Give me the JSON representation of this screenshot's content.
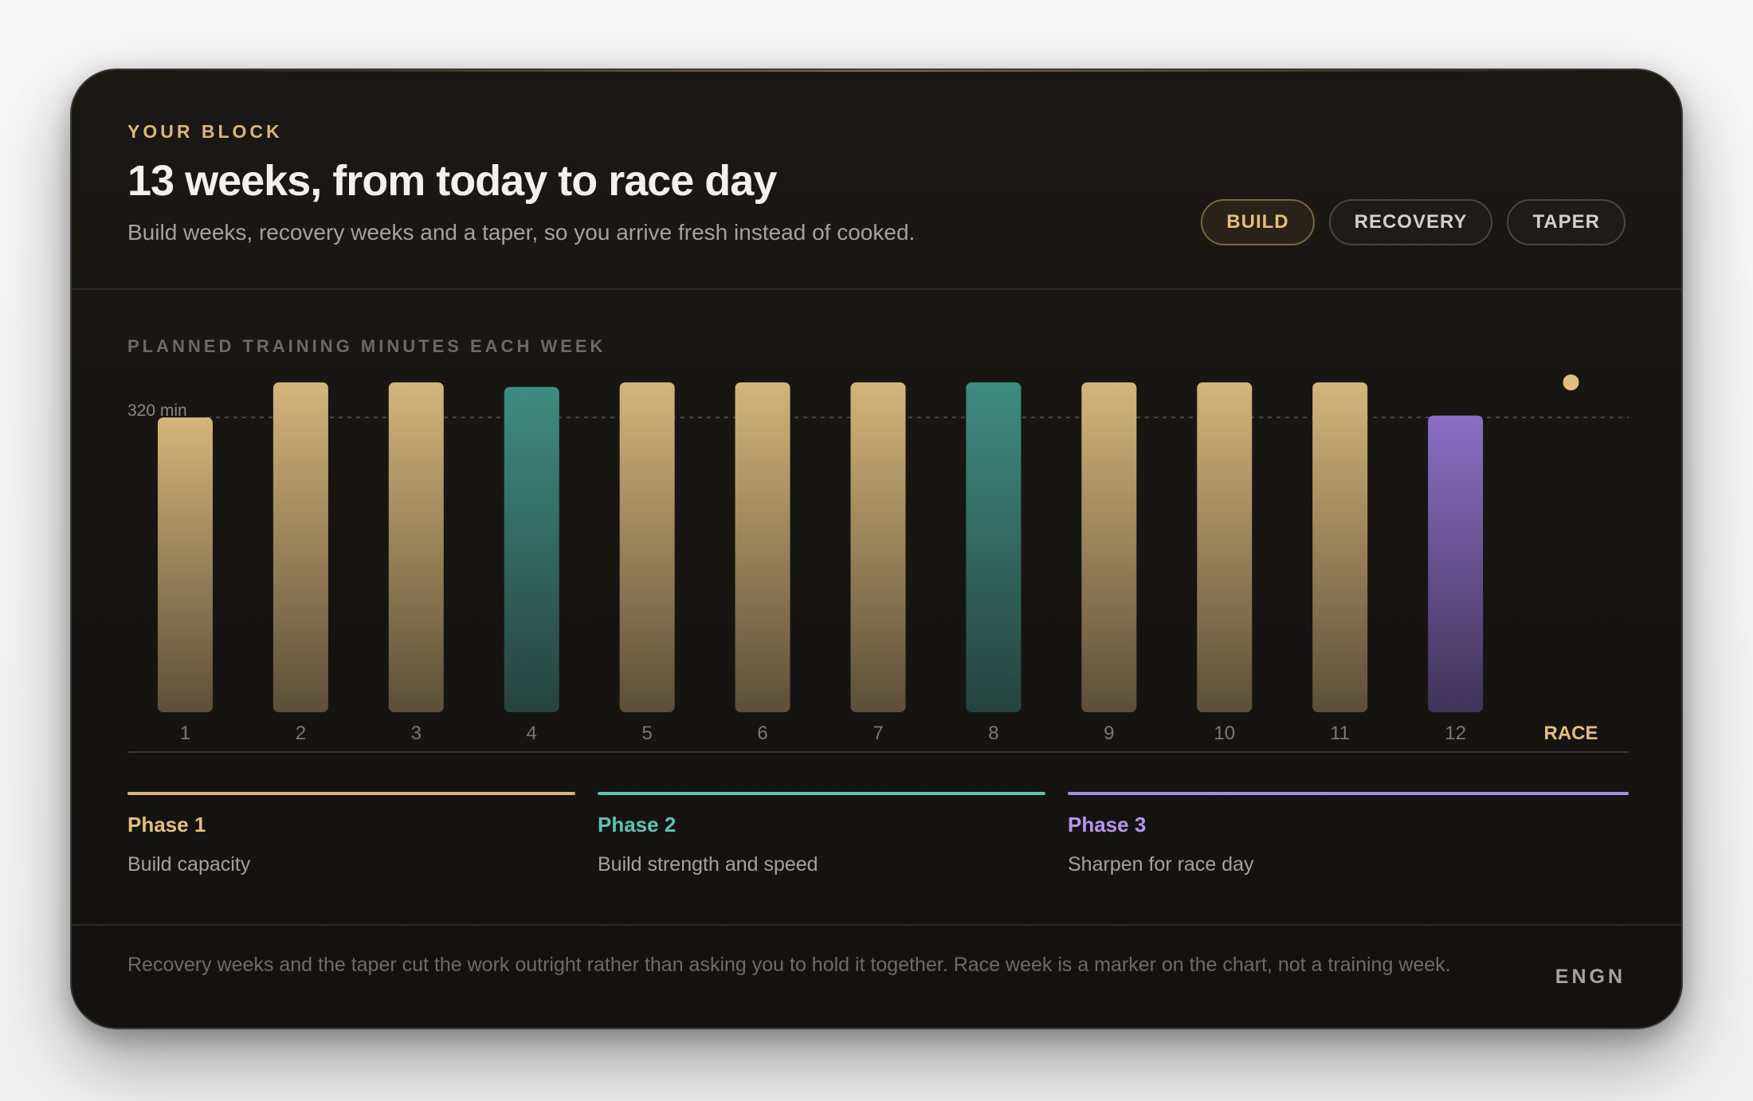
{
  "header": {
    "eyebrow": "YOUR BLOCK",
    "title": "13 weeks, from today to race day",
    "subtitle": "Build weeks, recovery weeks and a taper, so you arrive fresh instead of cooked."
  },
  "legend_pills": [
    "BUILD",
    "RECOVERY",
    "TAPER"
  ],
  "chart_label": "PLANNED TRAINING MINUTES EACH WEEK",
  "colors": {
    "build": "#d8b77a",
    "recovery": "#4a9a8c",
    "taper": "#8a70c8",
    "race": "#e3bf7d"
  },
  "chart_data": {
    "type": "bar",
    "title": "PLANNED TRAINING MINUTES EACH WEEK",
    "categories": [
      "1",
      "2",
      "3",
      "4",
      "5",
      "6",
      "7",
      "8",
      "9",
      "10",
      "11",
      "12",
      "RACE"
    ],
    "values": [
      320,
      358,
      358,
      353,
      358,
      358,
      358,
      358,
      358,
      358,
      358,
      322,
      null
    ],
    "kinds": [
      "build",
      "build",
      "build",
      "recovery",
      "build",
      "build",
      "build",
      "recovery",
      "build",
      "build",
      "build",
      "taper",
      "race"
    ],
    "reference_line": {
      "value": 320,
      "label": "320 min"
    },
    "ylim": [
      0,
      358
    ],
    "grid": false
  },
  "phases": [
    {
      "name": "Phase 1",
      "desc": "Build capacity",
      "color": "#d8b77a"
    },
    {
      "name": "Phase 2",
      "desc": "Build strength and speed",
      "color": "#5cc4b2"
    },
    {
      "name": "Phase 3",
      "desc": "Sharpen for race day",
      "color": "#a98ae6"
    }
  ],
  "footer": {
    "note": "Recovery weeks and the taper cut the work outright rather than asking you to hold it together. Race week is a marker on the chart, not a training week.",
    "brand": "ENGN"
  }
}
